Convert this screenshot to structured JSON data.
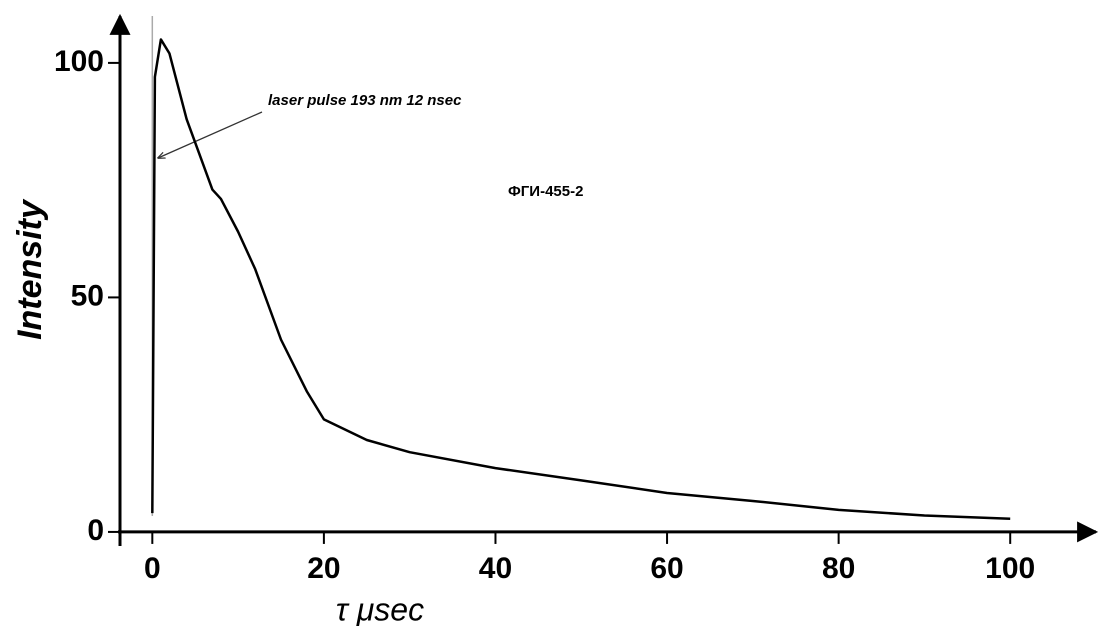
{
  "chart_data": {
    "type": "line",
    "x_label": "τ μsec",
    "y_label": "Intensity",
    "annotations": [
      "laser pulse 193 nm 12 nsec",
      "ФГИ-455-2"
    ],
    "x": [
      0,
      0.3,
      1,
      2,
      4,
      7,
      8,
      10,
      12,
      15,
      18,
      20,
      25,
      30,
      40,
      50,
      60,
      70,
      80,
      90,
      100
    ],
    "series": [
      {
        "name": "ФГИ-455-2",
        "color": "#000000",
        "values": [
          4,
          97,
          105,
          102,
          88,
          73,
          71,
          64,
          56,
          41,
          30,
          24,
          19.6,
          17,
          13.6,
          11,
          8.3,
          6.6,
          4.7,
          3.5,
          2.8
        ]
      }
    ],
    "xlim": [
      -4,
      110
    ],
    "ylim": [
      -3,
      110
    ],
    "xticks": [
      0,
      20,
      40,
      60,
      80,
      100
    ],
    "yticks": [
      0,
      50,
      100
    ],
    "grid": false
  }
}
